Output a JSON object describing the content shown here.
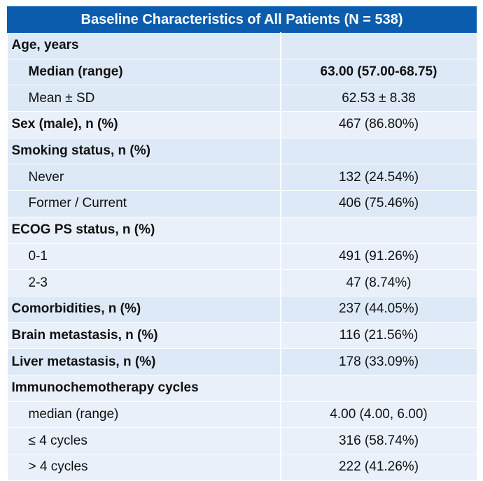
{
  "title": "Baseline Characteristics of All Patients (N = 538)",
  "rows": [
    {
      "label": "Age, years",
      "value": "",
      "indent": false,
      "bold": true,
      "band": "band"
    },
    {
      "label": "Median (range)",
      "value": "63.00 (57.00-68.75)",
      "indent": true,
      "bold": true,
      "band": "band"
    },
    {
      "label": "Mean ± SD",
      "value": "62.53 ± 8.38",
      "indent": true,
      "bold": false,
      "band": "band"
    },
    {
      "label": "Sex (male), n (%)",
      "value": "467 (86.80%)",
      "indent": false,
      "bold": true,
      "band": "plain"
    },
    {
      "label": "Smoking status, n (%)",
      "value": "",
      "indent": false,
      "bold": true,
      "band": "band"
    },
    {
      "label": "Never",
      "value": "132 (24.54%)",
      "indent": true,
      "bold": false,
      "band": "band"
    },
    {
      "label": "Former / Current",
      "value": "406 (75.46%)",
      "indent": true,
      "bold": false,
      "band": "band"
    },
    {
      "label": "ECOG PS status, n (%)",
      "value": "",
      "indent": false,
      "bold": true,
      "band": "plain"
    },
    {
      "label": "0-1",
      "value": "491 (91.26%)",
      "indent": true,
      "bold": false,
      "band": "plain"
    },
    {
      "label": "2-3",
      "value": "47 (8.74%)",
      "indent": true,
      "bold": false,
      "band": "plain"
    },
    {
      "label": "Comorbidities, n (%)",
      "value": "237 (44.05%)",
      "indent": false,
      "bold": true,
      "band": "band"
    },
    {
      "label": "Brain metastasis, n (%)",
      "value": "116 (21.56%)",
      "indent": false,
      "bold": true,
      "band": "plain"
    },
    {
      "label": "Liver metastasis, n (%)",
      "value": "178 (33.09%)",
      "indent": false,
      "bold": true,
      "band": "band"
    },
    {
      "label": "Immunochemotherapy cycles",
      "value": "",
      "indent": false,
      "bold": true,
      "band": "plain"
    },
    {
      "label": "median (range)",
      "value": "4.00 (4.00, 6.00)",
      "indent": true,
      "bold": false,
      "band": "plain"
    },
    {
      "label": "≤ 4 cycles",
      "value": "316 (58.74%)",
      "indent": true,
      "bold": false,
      "band": "plain"
    },
    {
      "label": "> 4 cycles",
      "value": "222 (41.26%)",
      "indent": true,
      "bold": false,
      "band": "plain"
    }
  ]
}
